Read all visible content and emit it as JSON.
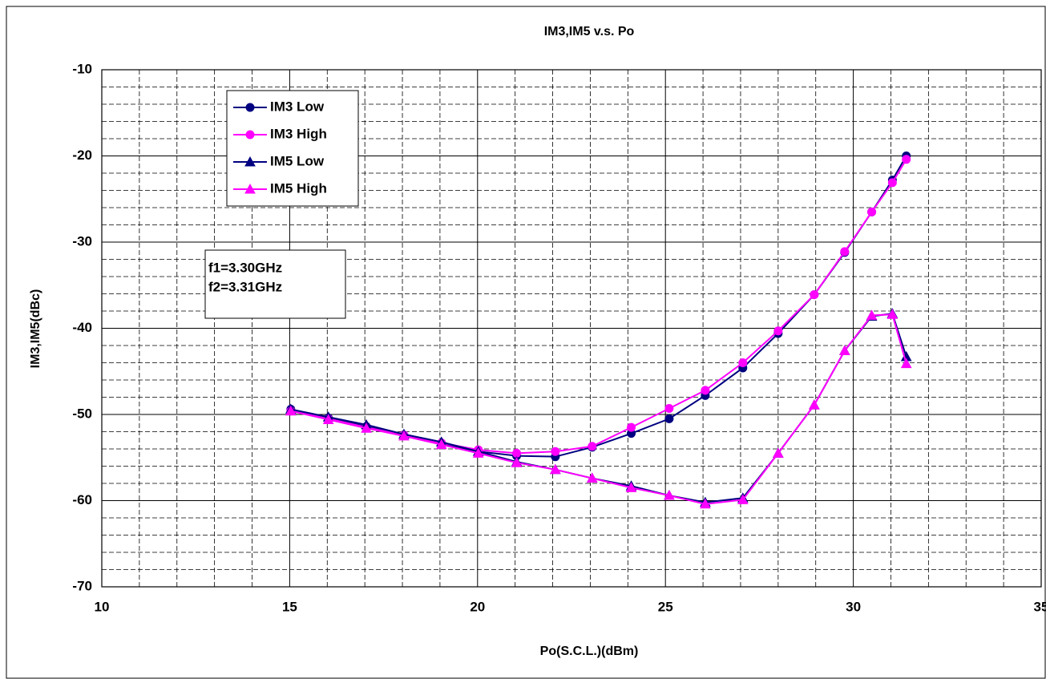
{
  "chart_data": {
    "type": "line",
    "title": "IM3,IM5  v.s.  Po",
    "x_label": "Po(S.C.L.)(dBm)",
    "y_label": "IM3,IM5(dBc)",
    "xlim": [
      10,
      35
    ],
    "xticks": [
      10,
      15,
      20,
      25,
      30,
      35
    ],
    "ylim": [
      -70,
      -10
    ],
    "yticks": [
      -10,
      -20,
      -30,
      -40,
      -50,
      -60,
      -70
    ],
    "grid": true,
    "legend": "upper-left",
    "annotations": [
      "f1=3.30GHz",
      "f2=3.31GHz"
    ],
    "x": [
      15.03,
      16.03,
      17.04,
      18.04,
      19.04,
      20.02,
      21.04,
      22.07,
      23.05,
      24.09,
      25.1,
      26.06,
      27.06,
      28.0,
      28.96,
      29.77,
      30.49,
      31.04,
      31.41
    ],
    "series": [
      {
        "name": "IM3 Low",
        "color": "#000080",
        "marker": "circle",
        "values": [
          -49.4,
          -50.4,
          -51.4,
          -52.4,
          -53.4,
          -54.3,
          -54.8,
          -54.9,
          -53.8,
          -52.2,
          -50.5,
          -47.8,
          -44.6,
          -40.6,
          -36.1,
          -31.2,
          -26.5,
          -22.8,
          -20.0
        ]
      },
      {
        "name": "IM3 High",
        "color": "#ff00ff",
        "marker": "circle",
        "values": [
          -49.6,
          -50.5,
          -51.5,
          -52.4,
          -53.3,
          -54.1,
          -54.5,
          -54.3,
          -53.7,
          -51.5,
          -49.3,
          -47.2,
          -44.0,
          -40.3,
          -36.1,
          -31.1,
          -26.5,
          -23.1,
          -20.4
        ]
      },
      {
        "name": "IM5 Low",
        "color": "#000080",
        "marker": "triangle",
        "values": [
          -49.4,
          -50.3,
          -51.2,
          -52.3,
          -53.2,
          -54.3,
          -55.5,
          -56.4,
          -57.4,
          -58.3,
          -59.4,
          -60.2,
          -59.7,
          -54.5,
          -48.9,
          -42.6,
          -38.6,
          -38.3,
          -43.3
        ]
      },
      {
        "name": "IM5 High",
        "color": "#ff00ff",
        "marker": "triangle",
        "values": [
          -49.6,
          -50.6,
          -51.6,
          -52.5,
          -53.5,
          -54.5,
          -55.6,
          -56.4,
          -57.4,
          -58.5,
          -59.4,
          -60.4,
          -59.9,
          -54.5,
          -48.9,
          -42.6,
          -38.5,
          -38.4,
          -44.1
        ]
      }
    ]
  }
}
